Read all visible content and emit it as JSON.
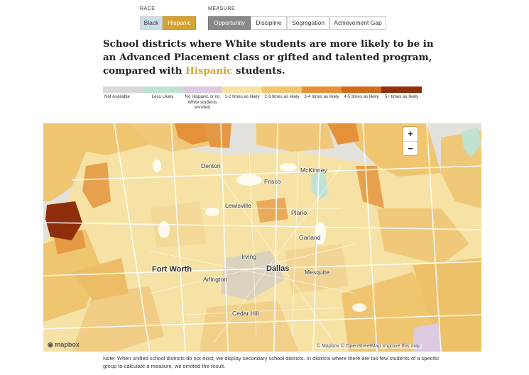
{
  "controls": {
    "race_label": "RACE",
    "race_options": [
      "Black",
      "Hispanic"
    ],
    "race_selected": "Hispanic",
    "measure_label": "MEASURE",
    "measure_options": [
      "Opportunity",
      "Discipline",
      "Segregation",
      "Achievement Gap"
    ],
    "measure_selected": "Opportunity"
  },
  "headline": {
    "text_before": "School districts where White students are more likely to be in an Advanced Placement class or gifted and talented program, compared with ",
    "highlight": "Hispanic",
    "text_after": " students."
  },
  "legend": [
    {
      "label": "Not Available",
      "color": "#d9d9d9"
    },
    {
      "label": "Less Likely",
      "color": "#bfe3d0"
    },
    {
      "label": "No Hispanic or no White students enrolled",
      "color": "#dccbe0"
    },
    {
      "label": "1-2 times as likely",
      "color": "#f5e2a4"
    },
    {
      "label": "2-3 times as likely",
      "color": "#efc56f"
    },
    {
      "label": "3-4 times as likely",
      "color": "#e4913a"
    },
    {
      "label": "4-5 times as likely",
      "color": "#cf6a1f"
    },
    {
      "label": "5+ times as likely",
      "color": "#8f2e0c"
    }
  ],
  "map": {
    "cities": [
      {
        "name": "Denton",
        "big": false
      },
      {
        "name": "McKinney",
        "big": false
      },
      {
        "name": "Frisco",
        "big": false
      },
      {
        "name": "Lewisville",
        "big": false
      },
      {
        "name": "Plano",
        "big": false
      },
      {
        "name": "Garland",
        "big": false
      },
      {
        "name": "Irving",
        "big": false
      },
      {
        "name": "Fort Worth",
        "big": true
      },
      {
        "name": "Dallas",
        "big": true
      },
      {
        "name": "Mesquite",
        "big": false
      },
      {
        "name": "Arlington",
        "big": false
      },
      {
        "name": "Cedar Hill",
        "big": false
      }
    ],
    "zoom_in": "+",
    "zoom_out": "−",
    "logo": "mapbox",
    "attribution": "© Mapbox © OpenStreetMap Improve this map"
  },
  "note": "Note: When unified school districts do not exist, we display secondary school districts. In districts where there are too few students of a specific group to calculate a measure, we omitted the result."
}
